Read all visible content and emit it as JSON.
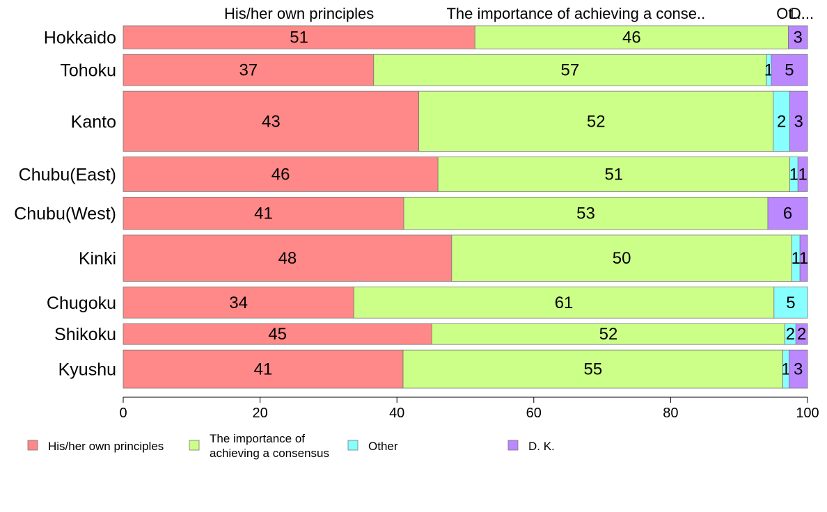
{
  "chart_data": {
    "type": "bar",
    "orientation": "horizontal",
    "stacked": true,
    "categories": [
      "Hokkaido",
      "Tohoku",
      "Kanto",
      "Chubu(East)",
      "Chubu(West)",
      "Kinki",
      "Chugoku",
      "Shikoku",
      "Kyushu"
    ],
    "category_weights": [
      1.0,
      1.35,
      2.6,
      1.5,
      1.4,
      2.0,
      1.35,
      0.9,
      1.65
    ],
    "series": [
      {
        "name": "His/her own principles",
        "color": "#ff8888",
        "values": [
          51.4,
          36.6,
          43.2,
          46.0,
          41.0,
          48.0,
          33.7,
          45.1,
          40.9
        ]
      },
      {
        "name": "The importance of achieving a consensus",
        "color": "#ccff88",
        "values": [
          45.8,
          57.4,
          51.8,
          51.4,
          53.2,
          49.7,
          61.4,
          51.6,
          55.5
        ]
      },
      {
        "name": "Other",
        "color": "#88ffff",
        "values": [
          0,
          0.7,
          2.4,
          1.2,
          0,
          1.2,
          4.9,
          1.6,
          0.9
        ]
      },
      {
        "name": "D. K.",
        "color": "#bb88ff",
        "values": [
          2.8,
          5.3,
          2.6,
          1.4,
          5.8,
          1.1,
          0,
          1.7,
          2.7
        ]
      }
    ],
    "data_labels": [
      [
        "51",
        "46",
        "",
        "3"
      ],
      [
        "37",
        "57",
        "1",
        "5"
      ],
      [
        "43",
        "52",
        "2",
        "3"
      ],
      [
        "46",
        "51",
        "1",
        "1"
      ],
      [
        "41",
        "53",
        "",
        "6"
      ],
      [
        "48",
        "50",
        "1",
        "1"
      ],
      [
        "34",
        "61",
        "5",
        ""
      ],
      [
        "45",
        "52",
        "2",
        "2"
      ],
      [
        "41",
        "55",
        "1",
        "3"
      ]
    ],
    "top_labels": [
      "His/her own principles",
      "The importance of achieving a conse..",
      "Ot...",
      "D..."
    ],
    "xticks": [
      0,
      20,
      40,
      60,
      80,
      100
    ],
    "xlim": [
      0,
      100
    ],
    "legend": {
      "placement": "bottom",
      "entries": [
        {
          "lines": [
            "His/her own principles"
          ],
          "color": "#ff8888"
        },
        {
          "lines": [
            "The importance of",
            "achieving a consensus"
          ],
          "color": "#ccff88"
        },
        {
          "lines": [
            "Other"
          ],
          "color": "#88ffff"
        },
        {
          "lines": [
            "D. K."
          ],
          "color": "#bb88ff"
        }
      ]
    },
    "grid": false
  }
}
